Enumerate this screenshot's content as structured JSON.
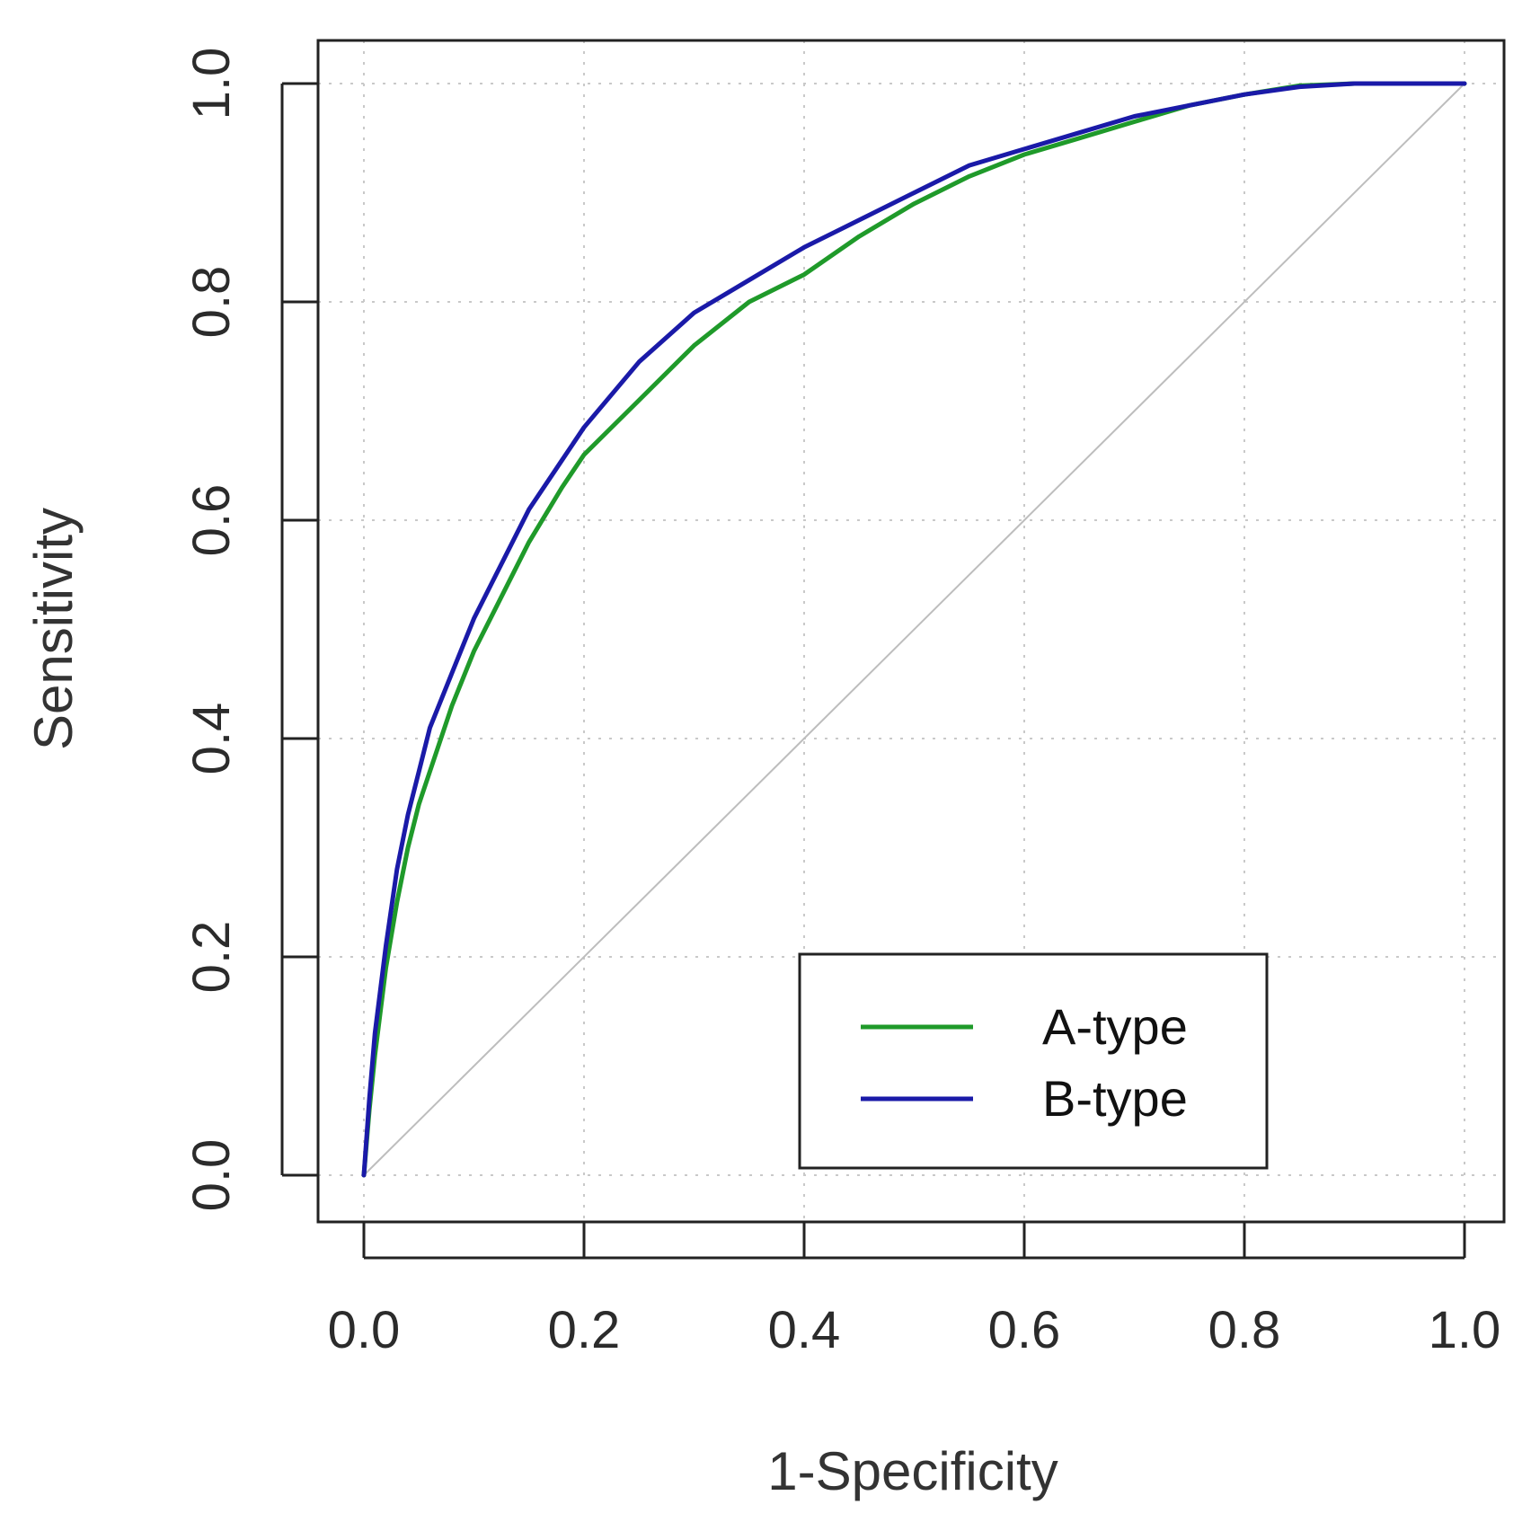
{
  "chart_data": {
    "type": "line",
    "title": "",
    "xlabel": "1-Specificity",
    "ylabel": "Sensitivity",
    "xlim": [
      0.0,
      1.0
    ],
    "ylim": [
      0.0,
      1.0
    ],
    "x_ticks": [
      "0.0",
      "0.2",
      "0.4",
      "0.6",
      "0.8",
      "1.0"
    ],
    "y_ticks": [
      "0.0",
      "0.2",
      "0.4",
      "0.6",
      "0.8",
      "1.0"
    ],
    "grid": true,
    "legend_position": "bottom-right",
    "reference_line": {
      "name": "chance",
      "x": [
        0.0,
        1.0
      ],
      "y": [
        0.0,
        1.0
      ],
      "color": "#bdbdbd"
    },
    "series": [
      {
        "name": "A-type",
        "color": "#1f9a2a",
        "x": [
          0.0,
          0.005,
          0.01,
          0.02,
          0.03,
          0.04,
          0.05,
          0.06,
          0.08,
          0.1,
          0.12,
          0.15,
          0.18,
          0.2,
          0.25,
          0.3,
          0.35,
          0.4,
          0.45,
          0.5,
          0.55,
          0.6,
          0.65,
          0.7,
          0.75,
          0.8,
          0.85,
          0.9,
          0.95,
          1.0
        ],
        "y": [
          0.0,
          0.06,
          0.11,
          0.19,
          0.25,
          0.3,
          0.34,
          0.37,
          0.43,
          0.48,
          0.52,
          0.58,
          0.63,
          0.66,
          0.71,
          0.76,
          0.8,
          0.825,
          0.86,
          0.89,
          0.915,
          0.935,
          0.95,
          0.965,
          0.98,
          0.99,
          0.998,
          1.0,
          1.0,
          1.0
        ]
      },
      {
        "name": "B-type",
        "color": "#1a1aa8",
        "x": [
          0.0,
          0.005,
          0.01,
          0.02,
          0.03,
          0.04,
          0.05,
          0.06,
          0.08,
          0.1,
          0.12,
          0.15,
          0.18,
          0.2,
          0.25,
          0.3,
          0.35,
          0.4,
          0.45,
          0.5,
          0.55,
          0.6,
          0.65,
          0.7,
          0.75,
          0.8,
          0.85,
          0.9,
          0.95,
          1.0
        ],
        "y": [
          0.0,
          0.07,
          0.13,
          0.21,
          0.28,
          0.33,
          0.37,
          0.41,
          0.46,
          0.51,
          0.55,
          0.61,
          0.655,
          0.685,
          0.745,
          0.79,
          0.82,
          0.85,
          0.875,
          0.9,
          0.925,
          0.94,
          0.955,
          0.97,
          0.98,
          0.99,
          0.997,
          1.0,
          1.0,
          1.0
        ]
      }
    ]
  }
}
